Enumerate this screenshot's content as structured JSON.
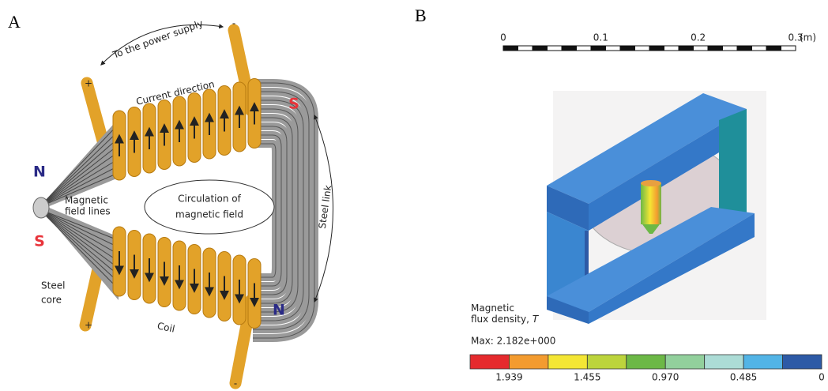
{
  "panel_a": {
    "label": "A",
    "power_supply": "To the power supply",
    "terminals": [
      "-",
      "+",
      "+",
      "-"
    ],
    "current_direction": "Current direction",
    "poles": [
      "S",
      "N",
      "S",
      "N"
    ],
    "field_lines": [
      "Magnetic",
      "field lines"
    ],
    "circulation": [
      "Circulation of",
      "magnetic field"
    ],
    "steel_link": "Steel link",
    "steel_core": [
      "Steel",
      "core"
    ],
    "coil": "Coil"
  },
  "panel_b": {
    "label": "B",
    "scale_ticks": [
      "0",
      "0.1",
      "0.2",
      "0.3"
    ],
    "scale_unit": "(m)",
    "legend_title": [
      "Magnetic",
      "flux density,"
    ],
    "legend_var": "T",
    "max": "Max: 2.182e+000",
    "colorbar_colors": [
      "#e52a2d",
      "#f39b2f",
      "#f4e634",
      "#bcd43c",
      "#6cb846",
      "#92d09c",
      "#acdcd6",
      "#52b4e6",
      "#2d5aa6"
    ],
    "colorbar_labels": [
      "1.939",
      "1.455",
      "0.970",
      "0.485",
      "0"
    ]
  }
}
